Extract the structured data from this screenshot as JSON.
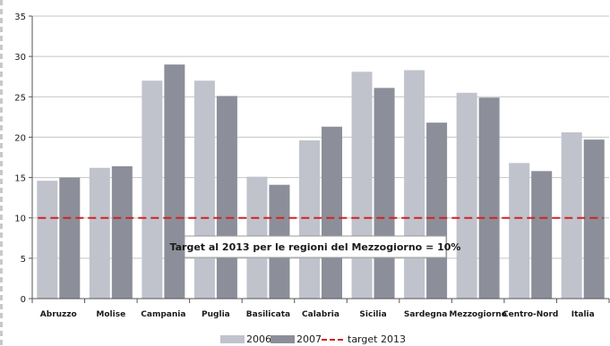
{
  "chart_data": {
    "type": "bar",
    "title": "",
    "xlabel": "",
    "ylabel": "",
    "ylim": [
      0,
      35
    ],
    "yticks": [
      0,
      5,
      10,
      15,
      20,
      25,
      30,
      35
    ],
    "grid": "horizontal",
    "legend_position": "bottom",
    "categories": [
      "Abruzzo",
      "Molise",
      "Campania",
      "Puglia",
      "Basilicata",
      "Calabria",
      "Sicilia",
      "Sardegna",
      "Mezzogiorno",
      "Centro-Nord",
      "Italia"
    ],
    "series": [
      {
        "name": "2006",
        "color": "#c0c3cc",
        "values": [
          14.6,
          16.2,
          27.0,
          27.0,
          15.1,
          19.6,
          28.1,
          28.3,
          25.5,
          16.8,
          20.6
        ]
      },
      {
        "name": "2007",
        "color": "#8c8f99",
        "values": [
          15.0,
          16.4,
          29.0,
          25.1,
          14.1,
          21.3,
          26.1,
          21.8,
          24.9,
          15.8,
          19.7
        ]
      }
    ],
    "target": {
      "name": "target 2013",
      "value": 10,
      "color": "#d42020"
    },
    "annotation": "Target al 2013 per le regioni del Mezzogiorno = 10%"
  }
}
